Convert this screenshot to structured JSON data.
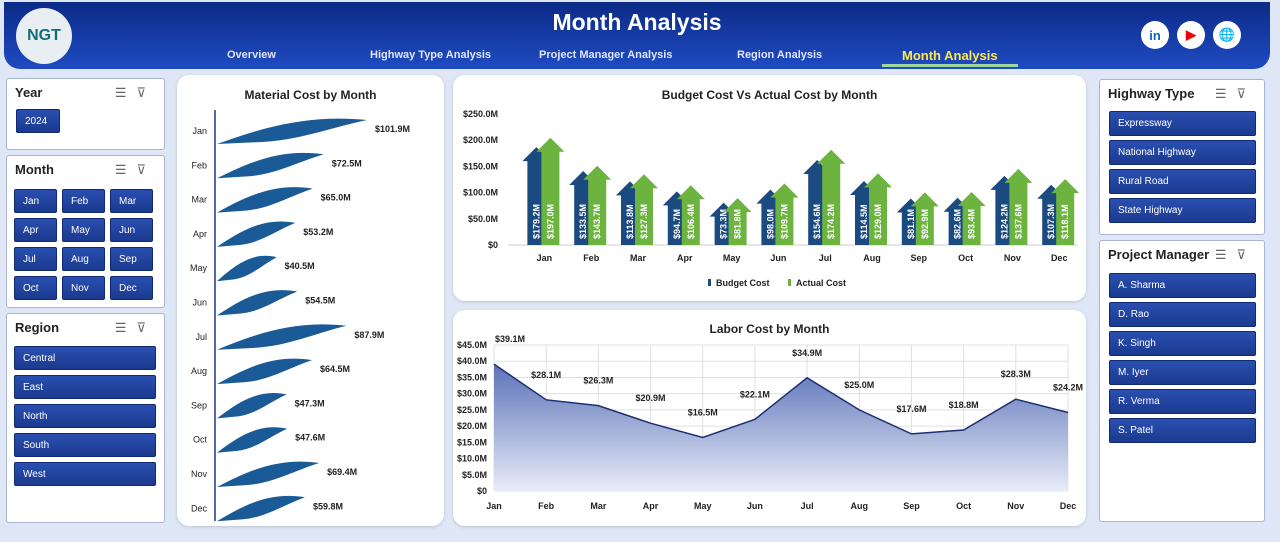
{
  "header": {
    "title": "Month Analysis",
    "logo_text": "NGT",
    "nav": [
      "Overview",
      "Highway Type Analysis",
      "Project Manager Analysis",
      "Region Analysis",
      "Month Analysis"
    ],
    "active": "Month Analysis",
    "social": [
      "in",
      "▶",
      "🌐"
    ]
  },
  "filters": {
    "year": {
      "title": "Year",
      "items": [
        "2024"
      ]
    },
    "month": {
      "title": "Month",
      "items": [
        "Jan",
        "Feb",
        "Mar",
        "Apr",
        "May",
        "Jun",
        "Jul",
        "Aug",
        "Sep",
        "Oct",
        "Nov",
        "Dec"
      ]
    },
    "region": {
      "title": "Region",
      "items": [
        "Central",
        "East",
        "North",
        "South",
        "West"
      ]
    },
    "highway": {
      "title": "Highway Type",
      "items": [
        "Expressway",
        "National Highway",
        "Rural Road",
        "State Highway"
      ]
    },
    "manager": {
      "title": "Project Manager",
      "items": [
        "A. Sharma",
        "D. Rao",
        "K. Singh",
        "M. Iyer",
        "R. Verma",
        "S. Patel"
      ]
    }
  },
  "colors": {
    "budget": "#1a4a80",
    "actual": "#6cb33f",
    "material": "#1a5a96",
    "labor_line": "#1d2f73"
  },
  "chart_data": [
    {
      "type": "bar",
      "title": "Material Cost by Month",
      "orientation": "horizontal",
      "categories": [
        "Jan",
        "Feb",
        "Mar",
        "Apr",
        "May",
        "Jun",
        "Jul",
        "Aug",
        "Sep",
        "Oct",
        "Nov",
        "Dec"
      ],
      "values": [
        101.9,
        72.5,
        65.0,
        53.2,
        40.5,
        54.5,
        87.9,
        64.5,
        47.3,
        47.6,
        69.4,
        59.8
      ],
      "labels": [
        "$101.9M",
        "$72.5M",
        "$65.0M",
        "$53.2M",
        "$40.5M",
        "$54.5M",
        "$87.9M",
        "$64.5M",
        "$47.3M",
        "$47.6M",
        "$69.4M",
        "$59.8M"
      ]
    },
    {
      "type": "bar",
      "title": "Budget Cost Vs Actual Cost by Month",
      "categories": [
        "Jan",
        "Feb",
        "Mar",
        "Apr",
        "May",
        "Jun",
        "Jul",
        "Aug",
        "Sep",
        "Oct",
        "Nov",
        "Dec"
      ],
      "yticks": [
        "$0",
        "$50.0M",
        "$100.0M",
        "$150.0M",
        "$200.0M",
        "$250.0M"
      ],
      "ylim": [
        0,
        250
      ],
      "legend": "bottom",
      "series": [
        {
          "name": "Budget Cost",
          "values": [
            179.2,
            133.5,
            113.8,
            94.7,
            73.3,
            98.0,
            154.6,
            114.5,
            81.1,
            82.6,
            124.2,
            107.3
          ],
          "labels": [
            "$179.2M",
            "$133.5M",
            "$113.8M",
            "$94.7M",
            "$73.3M",
            "$98.0M",
            "$154.6M",
            "$114.5M",
            "$81.1M",
            "$82.6M",
            "$124.2M",
            "$107.3M"
          ]
        },
        {
          "name": "Actual Cost",
          "values": [
            197.0,
            143.7,
            127.3,
            106.4,
            81.8,
            109.7,
            174.2,
            129.0,
            92.9,
            93.4,
            137.6,
            118.1
          ],
          "labels": [
            "$197.0M",
            "$143.7M",
            "$127.3M",
            "$106.4M",
            "$81.8M",
            "$109.7M",
            "$174.2M",
            "$129.0M",
            "$92.9M",
            "$93.4M",
            "$137.6M",
            "$118.1M"
          ]
        }
      ]
    },
    {
      "type": "area",
      "title": "Labor Cost by Month",
      "categories": [
        "Jan",
        "Feb",
        "Mar",
        "Apr",
        "May",
        "Jun",
        "Jul",
        "Aug",
        "Sep",
        "Oct",
        "Nov",
        "Dec"
      ],
      "values": [
        39.1,
        28.1,
        26.3,
        20.9,
        16.5,
        22.1,
        34.9,
        25.0,
        17.6,
        18.8,
        28.3,
        24.2
      ],
      "labels": [
        "$39.1M",
        "$28.1M",
        "$26.3M",
        "$20.9M",
        "$16.5M",
        "$22.1M",
        "$34.9M",
        "$25.0M",
        "$17.6M",
        "$18.8M",
        "$28.3M",
        "$24.2M"
      ],
      "yticks": [
        "$0",
        "$5.0M",
        "$10.0M",
        "$15.0M",
        "$20.0M",
        "$25.0M",
        "$30.0M",
        "$35.0M",
        "$40.0M",
        "$45.0M"
      ],
      "ylim": [
        0,
        45
      ],
      "grid": true
    }
  ]
}
